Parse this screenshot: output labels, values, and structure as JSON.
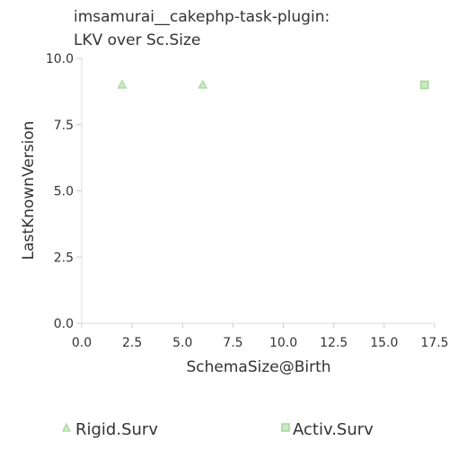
{
  "chart_data": {
    "type": "scatter",
    "title_lines": [
      "imsamurai__cakephp-task-plugin:",
      "LKV over Sc.Size"
    ],
    "xlabel": "SchemaSize@Birth",
    "ylabel": "LastKnownVersion",
    "xlim": [
      0,
      17.5
    ],
    "ylim": [
      0,
      10
    ],
    "x_ticks": [
      "0.0",
      "2.5",
      "5.0",
      "7.5",
      "10.0",
      "12.5",
      "15.0",
      "17.5"
    ],
    "y_ticks": [
      "0.0",
      "2.5",
      "5.0",
      "7.5",
      "10.0"
    ],
    "grid": false,
    "legend_position": "bottom",
    "series": [
      {
        "name": "Rigid.Surv",
        "marker": "triangle",
        "color": "#a6d89b",
        "points": [
          {
            "x": 2,
            "y": 9
          },
          {
            "x": 6,
            "y": 9
          }
        ]
      },
      {
        "name": "Activ.Surv",
        "marker": "square",
        "color": "#a6d89b",
        "points": [
          {
            "x": 17,
            "y": 9
          }
        ]
      }
    ]
  }
}
